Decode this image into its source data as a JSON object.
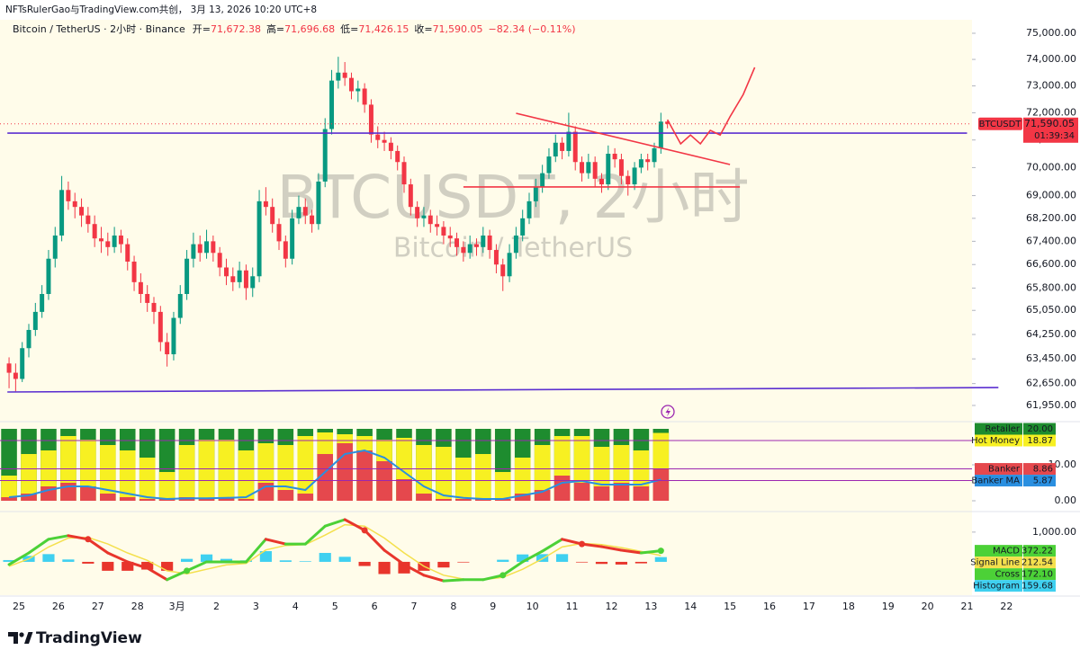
{
  "header": {
    "title": "NFTsRulerGao与TradingView.com共创， 3月 13, 2026 10:20 UTC+8"
  },
  "legend": {
    "symbol": "Bitcoin / TetherUS · 2小时 · Binance",
    "ohlc": [
      {
        "label": "开=",
        "value": "71,672.38"
      },
      {
        "label": "高=",
        "value": "71,696.68"
      },
      {
        "label": "低=",
        "value": "71,426.15"
      },
      {
        "label": "收=",
        "value": "71,590.05"
      }
    ],
    "change": "−82.34 (−0.11%)",
    "value_color": "#f23645"
  },
  "watermark": {
    "title": "BTCUSDT, 2小时",
    "subtitle": "Bitcoin / TetherUS"
  },
  "footer": {
    "brand": "TradingView"
  },
  "chart_data": [
    {
      "type": "candlestick",
      "log_scale": true,
      "up_color": "#089981",
      "down_color": "#f23645",
      "xlim": [
        -11.5,
        579
      ],
      "xticks": [
        {
          "value": 0,
          "label": "25"
        },
        {
          "value": 24,
          "label": "26"
        },
        {
          "value": 48,
          "label": "27"
        },
        {
          "value": 72,
          "label": "28"
        },
        {
          "value": 96,
          "label": "3月"
        },
        {
          "value": 120,
          "label": "2"
        },
        {
          "value": 144,
          "label": "3"
        },
        {
          "value": 168,
          "label": "4"
        },
        {
          "value": 192,
          "label": "5"
        },
        {
          "value": 216,
          "label": "6"
        },
        {
          "value": 240,
          "label": "7"
        },
        {
          "value": 264,
          "label": "8"
        },
        {
          "value": 288,
          "label": "9"
        },
        {
          "value": 312,
          "label": "10"
        },
        {
          "value": 336,
          "label": "11"
        },
        {
          "value": 360,
          "label": "12"
        },
        {
          "value": 384,
          "label": "13"
        },
        {
          "value": 408,
          "label": "14"
        },
        {
          "value": 432,
          "label": "15"
        },
        {
          "value": 456,
          "label": "16"
        },
        {
          "value": 480,
          "label": "17"
        },
        {
          "value": 504,
          "label": "18"
        },
        {
          "value": 528,
          "label": "19"
        },
        {
          "value": 552,
          "label": "20"
        },
        {
          "value": 576,
          "label": "21"
        },
        {
          "value": 600,
          "label": "22"
        }
      ],
      "ylim": [
        61465,
        75417
      ],
      "yticks": [
        {
          "value": 75000,
          "label": "75,000.00"
        },
        {
          "value": 74000,
          "label": "74,000.00"
        },
        {
          "value": 73000,
          "label": "73,000.00"
        },
        {
          "value": 72000,
          "label": "72,000.00"
        },
        {
          "value": 71000,
          "label": "71,000.00"
        },
        {
          "value": 70000,
          "label": "70,000.00"
        },
        {
          "value": 69000,
          "label": "69,000.00"
        },
        {
          "value": 68200,
          "label": "68,200.00"
        },
        {
          "value": 67400,
          "label": "67,400.00"
        },
        {
          "value": 66600,
          "label": "66,600.00"
        },
        {
          "value": 65800,
          "label": "65,800.00"
        },
        {
          "value": 65050,
          "label": "65,050.00"
        },
        {
          "value": 64250,
          "label": "64,250.00"
        },
        {
          "value": 63450,
          "label": "63,450.00"
        },
        {
          "value": 62650,
          "label": "62,650.00"
        },
        {
          "value": 61950,
          "label": "61,950.00"
        }
      ],
      "x": [
        -6,
        -2,
        2,
        6,
        10,
        14,
        18,
        22,
        26,
        30,
        34,
        38,
        42,
        46,
        50,
        54,
        58,
        62,
        66,
        70,
        74,
        78,
        82,
        86,
        90,
        94,
        98,
        102,
        106,
        110,
        114,
        118,
        122,
        126,
        130,
        134,
        138,
        142,
        146,
        150,
        154,
        158,
        162,
        166,
        170,
        174,
        178,
        182,
        186,
        190,
        194,
        198,
        202,
        206,
        210,
        214,
        218,
        222,
        226,
        230,
        234,
        238,
        242,
        246,
        250,
        254,
        258,
        262,
        266,
        270,
        274,
        278,
        282,
        286,
        290,
        294,
        298,
        302,
        306,
        310,
        314,
        318,
        322,
        326,
        330,
        334,
        338,
        342,
        346,
        350,
        354,
        358,
        362,
        366,
        370,
        374,
        378,
        382,
        386,
        390,
        394
      ],
      "open": [
        63300,
        63000,
        62800,
        63800,
        64400,
        65000,
        65600,
        66800,
        67600,
        69200,
        68800,
        68600,
        68300,
        68000,
        67500,
        67400,
        67200,
        67600,
        67300,
        66700,
        66000,
        65600,
        65300,
        65000,
        64000,
        63600,
        64800,
        65600,
        66800,
        67300,
        67000,
        67400,
        67000,
        66500,
        66200,
        66000,
        66400,
        65800,
        66200,
        68800,
        68600,
        68000,
        67400,
        66800,
        68200,
        68600,
        68300,
        68000,
        69500,
        71400,
        73200,
        73500,
        73300,
        72800,
        72900,
        72300,
        71200,
        71000,
        70900,
        70600,
        70200,
        69400,
        68600,
        68200,
        68300,
        68000,
        67900,
        67600,
        67500,
        67200,
        67000,
        67300,
        67200,
        67600,
        67100,
        66600,
        66200,
        67000,
        67600,
        68200,
        68800,
        69300,
        69800,
        70400,
        70900,
        70600,
        71300,
        70200,
        69800,
        70200,
        69600,
        69400,
        70500,
        70300,
        69700,
        69400,
        70000,
        70300,
        70200,
        70700,
        71672.38
      ],
      "high": [
        63500,
        63300,
        64000,
        64600,
        65300,
        65900,
        67100,
        67900,
        69700,
        69500,
        69100,
        68900,
        68600,
        68300,
        67900,
        67700,
        67900,
        67800,
        67500,
        66900,
        66300,
        65900,
        65500,
        65200,
        64300,
        65000,
        65900,
        67100,
        67700,
        67600,
        67800,
        67600,
        67200,
        66800,
        66500,
        66700,
        66600,
        66500,
        69200,
        69300,
        68900,
        68200,
        67600,
        68500,
        69000,
        68900,
        68500,
        69800,
        71800,
        73600,
        74100,
        73900,
        73500,
        73200,
        73100,
        72500,
        71500,
        71300,
        71100,
        70800,
        70400,
        69600,
        68800,
        68600,
        68500,
        68300,
        68100,
        67900,
        67700,
        67400,
        67600,
        67500,
        67900,
        67800,
        67300,
        66800,
        67300,
        67900,
        68500,
        69100,
        69600,
        70100,
        70700,
        71200,
        71100,
        72000,
        71500,
        70400,
        70500,
        70400,
        69800,
        70800,
        70700,
        70500,
        69900,
        70200,
        70500,
        70500,
        70900,
        72000,
        71696.68
      ],
      "low": [
        62500,
        62400,
        62700,
        63500,
        64200,
        64800,
        65400,
        66500,
        67400,
        68500,
        68200,
        67900,
        67700,
        67200,
        67000,
        66900,
        67000,
        67000,
        66400,
        65700,
        65300,
        65000,
        64600,
        63700,
        63200,
        63400,
        64600,
        65400,
        66500,
        66700,
        66800,
        66700,
        66200,
        65900,
        65700,
        65800,
        65400,
        65500,
        66000,
        68300,
        67700,
        67100,
        66500,
        66600,
        68000,
        68000,
        67700,
        67800,
        69300,
        71200,
        72900,
        73000,
        72500,
        72400,
        72000,
        70900,
        70700,
        70600,
        70300,
        69900,
        69100,
        68300,
        67900,
        67900,
        67700,
        67600,
        67300,
        67200,
        66900,
        66700,
        66800,
        66900,
        67000,
        66800,
        66300,
        65700,
        66000,
        66800,
        67400,
        68000,
        68600,
        69100,
        69600,
        70200,
        70300,
        70400,
        69900,
        69500,
        69600,
        69300,
        69100,
        69200,
        70000,
        69400,
        69000,
        69200,
        69800,
        69900,
        70000,
        70500,
        71426.15
      ],
      "close": [
        63000,
        62800,
        63800,
        64400,
        65000,
        65600,
        66800,
        67600,
        69200,
        68800,
        68600,
        68300,
        68000,
        67500,
        67400,
        67200,
        67600,
        67300,
        66700,
        66000,
        65600,
        65300,
        65000,
        64000,
        63600,
        64800,
        65600,
        66800,
        67300,
        67000,
        67400,
        67000,
        66500,
        66200,
        66000,
        66400,
        65800,
        66200,
        68800,
        68600,
        68000,
        67400,
        66800,
        68200,
        68600,
        68300,
        68000,
        69500,
        71400,
        73200,
        73500,
        73300,
        72800,
        72900,
        72300,
        71200,
        71000,
        70900,
        70600,
        70200,
        69400,
        68600,
        68200,
        68300,
        68000,
        67900,
        67600,
        67500,
        67200,
        67000,
        67300,
        67200,
        67600,
        67100,
        66600,
        66200,
        67000,
        67600,
        68200,
        68800,
        69300,
        69800,
        70400,
        70900,
        70600,
        71300,
        70200,
        69800,
        70200,
        69600,
        69400,
        70500,
        70300,
        69700,
        69400,
        70000,
        70300,
        70200,
        70700,
        71672.38,
        71590.05
      ],
      "last_price": {
        "symbol": "BTCUSDT",
        "value": 71590.05,
        "label": "71,590.05",
        "countdown": "01:39:34",
        "color": "#f23645"
      },
      "lines": [
        {
          "color": "#5b2fd0",
          "x": [
            -7,
            576
          ],
          "values": [
            71250,
            71250
          ]
        },
        {
          "color": "#5b2fd0",
          "x": [
            -7,
            595
          ],
          "values": [
            62380,
            62520
          ]
        },
        {
          "color": "#f23645",
          "x": [
            302,
            432
          ],
          "values": [
            71980,
            70110
          ]
        },
        {
          "color": "#f23645",
          "x": [
            270,
            438
          ],
          "values": [
            69310,
            69310
          ]
        },
        {
          "color": "#f23645",
          "x": [
            394,
            402,
            408,
            414,
            420,
            426,
            432,
            440,
            447
          ],
          "values": [
            71745,
            70860,
            71180,
            70860,
            71350,
            71180,
            71850,
            72680,
            73700
          ]
        }
      ]
    },
    {
      "type": "bar",
      "ylim": [
        -2.75,
        21.75
      ],
      "yticks": [
        {
          "value": 0,
          "label": "0.00"
        },
        {
          "value": 10,
          "label": "10.00"
        }
      ],
      "level_color": "#9c27b0",
      "x": [
        -6,
        6,
        18,
        30,
        42,
        54,
        66,
        78,
        90,
        102,
        114,
        126,
        138,
        150,
        162,
        174,
        186,
        198,
        210,
        222,
        234,
        246,
        258,
        270,
        282,
        294,
        306,
        318,
        330,
        342,
        354,
        366,
        378,
        390
      ],
      "series": [
        {
          "name": "Retailer",
          "color": "#1e8c2f",
          "text_color": "#ffffff",
          "kind": "bar",
          "value_label": "20.00",
          "values": [
            20,
            20,
            20,
            20,
            20,
            20,
            20,
            20,
            20,
            20,
            20,
            20,
            20,
            20,
            20,
            20,
            20,
            20,
            20,
            20,
            20,
            20,
            20,
            20,
            20,
            20,
            20,
            20,
            20,
            20,
            20,
            20,
            20,
            20
          ]
        },
        {
          "name": "Hot Money",
          "color": "#f7f022",
          "text_color": "#131722",
          "kind": "bar",
          "value_label": "18.87",
          "values": [
            7,
            13,
            14,
            18,
            17,
            15.5,
            14,
            12,
            8,
            15.5,
            17,
            17,
            14,
            16,
            15.5,
            18,
            19,
            18.5,
            18,
            17,
            17.5,
            15.5,
            15,
            12,
            13,
            8,
            12,
            15.5,
            18,
            18,
            15,
            15.5,
            14,
            18.87
          ]
        },
        {
          "name": "Banker",
          "color": "#e5484d",
          "text_color": "#ffffff",
          "kind": "bar",
          "value_label": "8.86",
          "values": [
            1,
            2,
            4,
            5,
            4,
            2,
            1,
            0.5,
            0.5,
            1,
            0.5,
            1,
            0.5,
            5,
            3,
            2,
            13,
            16,
            14,
            11,
            6,
            2,
            0.5,
            0.5,
            0.5,
            0.5,
            2,
            3,
            7,
            5,
            4,
            5,
            4,
            8.86
          ]
        },
        {
          "name": "Banker MA",
          "color": "#2a8fe0",
          "text_color": "#ffffff",
          "kind": "line",
          "value_label": "5.87",
          "values": [
            1,
            1.5,
            3,
            4,
            4,
            3,
            2,
            1,
            0.5,
            0.7,
            0.7,
            0.8,
            1,
            4,
            4,
            3,
            8,
            13,
            14,
            12,
            8,
            4,
            1.5,
            0.8,
            0.5,
            0.5,
            1.5,
            2.5,
            5,
            5.5,
            4.5,
            4.5,
            4.5,
            5.87
          ]
        }
      ]
    },
    {
      "type": "macd",
      "ylim": [
        -1120,
        1600
      ],
      "yticks": [
        {
          "value": 1000,
          "label": "1,000.00"
        }
      ],
      "rise_color": "#4cd137",
      "fall_color": "#e8352c",
      "x": [
        -6,
        6,
        18,
        30,
        42,
        54,
        66,
        78,
        90,
        102,
        114,
        126,
        138,
        150,
        162,
        174,
        186,
        198,
        210,
        222,
        234,
        246,
        258,
        270,
        282,
        294,
        306,
        318,
        330,
        342,
        354,
        366,
        378,
        390
      ],
      "series": [
        {
          "name": "MACD",
          "color": "#4cd137",
          "text_color": "#131722",
          "kind": "macd",
          "value_label": "372.22",
          "values": [
            -90,
            300,
            760,
            880,
            760,
            300,
            0,
            -210,
            -600,
            -300,
            0,
            0,
            0,
            760,
            600,
            600,
            1200,
            1420,
            1060,
            390,
            -90,
            -450,
            -640,
            -600,
            -600,
            -450,
            0,
            360,
            760,
            600,
            510,
            390,
            300,
            372.22
          ]
        },
        {
          "name": "Signal Line",
          "color": "#f4e04d",
          "text_color": "#131722",
          "kind": "line",
          "value_label": "212.54",
          "values": [
            -150,
            100,
            500,
            800,
            820,
            600,
            300,
            50,
            -300,
            -400,
            -250,
            -100,
            -50,
            400,
            550,
            580,
            900,
            1250,
            1200,
            800,
            300,
            -150,
            -450,
            -580,
            -600,
            -520,
            -250,
            100,
            500,
            620,
            580,
            480,
            350,
            212.54
          ]
        },
        {
          "name": "Cross",
          "color": "#4cd137",
          "text_color": "#131722",
          "kind": "cross",
          "value_label": "172.10"
        },
        {
          "name": "Histogram",
          "color": "#3fd0f0",
          "negative_color": "#e8352c",
          "text_color": "#131722",
          "kind": "bar",
          "value_label": "159.68",
          "values": [
            60,
            200,
            260,
            80,
            -60,
            -300,
            -300,
            -260,
            -300,
            100,
            250,
            100,
            50,
            360,
            50,
            20,
            300,
            170,
            -140,
            -410,
            -390,
            -300,
            -190,
            -20,
            0,
            70,
            250,
            260,
            260,
            -20,
            -70,
            -90,
            -50,
            159.68
          ]
        }
      ]
    }
  ]
}
